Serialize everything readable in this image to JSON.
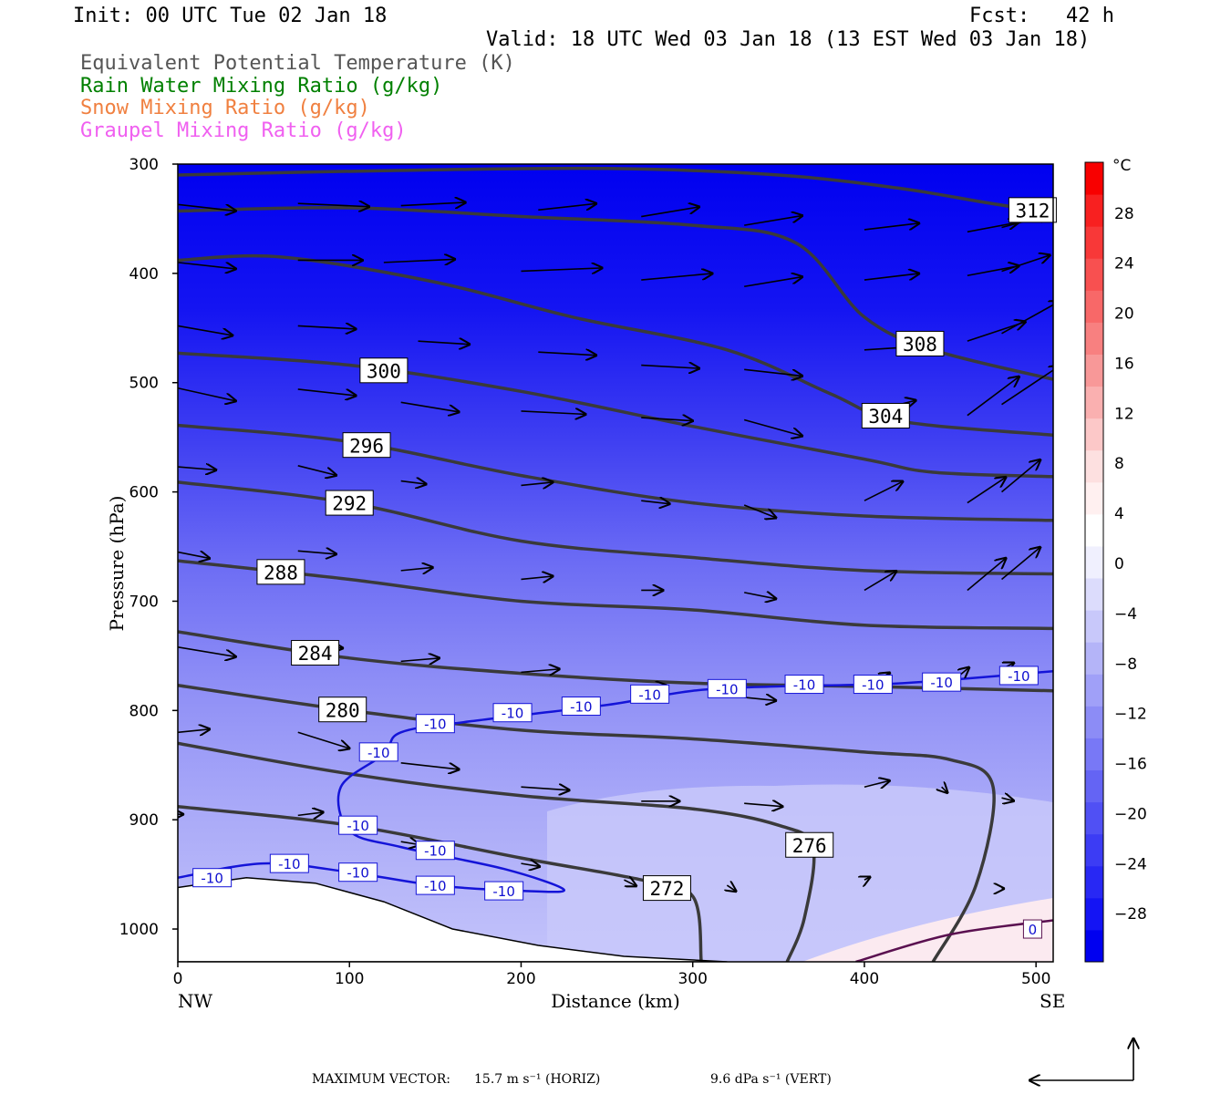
{
  "header": {
    "init": "Init: 00 UTC Tue 02 Jan 18",
    "fcst": "Fcst:   42 h",
    "valid": "Valid: 18 UTC Wed 03 Jan 18 (13 EST Wed 03 Jan 18)"
  },
  "legend": [
    {
      "label": "Equivalent Potential Temperature (K)",
      "color": "#555555"
    },
    {
      "label": "Rain Water Mixing Ratio (g/kg)",
      "color": "#008000"
    },
    {
      "label": "Snow Mixing Ratio (g/kg)",
      "color": "#f08040"
    },
    {
      "label": "Graupel Mixing Ratio (g/kg)",
      "color": "#f060f0"
    }
  ],
  "footer": {
    "max_vector_label": "MAXIMUM VECTOR:",
    "horiz": "15.7 m s⁻¹ (HORIZ)",
    "vert": "9.6 dPa s⁻¹ (VERT)"
  },
  "chart_data": {
    "type": "heatmap",
    "xlabel": "Distance (km)",
    "ylabel": "Pressure (hPa)",
    "x_left_label": "NW",
    "x_right_label": "SE",
    "xlim": [
      0,
      510
    ],
    "ylim": [
      1030,
      300
    ],
    "x_ticks": [
      0,
      100,
      200,
      300,
      400,
      500
    ],
    "y_ticks": [
      300,
      400,
      500,
      600,
      700,
      800,
      900,
      1000
    ],
    "colorbar": {
      "unit": "°C",
      "ticks": [
        28,
        24,
        20,
        16,
        12,
        8,
        4,
        0,
        -4,
        -8,
        -12,
        -16,
        -20,
        -24,
        -28
      ],
      "colors": [
        "#0000f0",
        "#1414f4",
        "#2828f4",
        "#3c3cf4",
        "#5050f4",
        "#6464f4",
        "#7878f6",
        "#8c8cf6",
        "#a0a0f8",
        "#b4b4f8",
        "#c8c8fa",
        "#dcdcfc",
        "#f0f0fe",
        "#ffffff",
        "#fff0f0",
        "#fde0e0",
        "#fcc8c8",
        "#fab0b0",
        "#f89898",
        "#f88080",
        "#f86868",
        "#f85050",
        "#f83838",
        "#f82020",
        "#f80000"
      ]
    },
    "theta_e_contours": [
      {
        "label": "312",
        "points": [
          [
            0,
            310
          ],
          [
            120,
            306
          ],
          [
            250,
            304
          ],
          [
            350,
            310
          ],
          [
            420,
            322
          ],
          [
            470,
            335
          ],
          [
            510,
            345
          ]
        ]
      },
      {
        "label": "308",
        "points": [
          [
            0,
            343
          ],
          [
            100,
            340
          ],
          [
            200,
            348
          ],
          [
            300,
            356
          ],
          [
            360,
            372
          ],
          [
            400,
            440
          ],
          [
            440,
            470
          ],
          [
            510,
            497
          ]
        ]
      },
      {
        "label": "304",
        "points": [
          [
            0,
            388
          ],
          [
            60,
            385
          ],
          [
            150,
            408
          ],
          [
            230,
            440
          ],
          [
            320,
            470
          ],
          [
            380,
            510
          ],
          [
            420,
            535
          ],
          [
            510,
            548
          ]
        ]
      },
      {
        "label": "300",
        "points": [
          [
            0,
            473
          ],
          [
            100,
            484
          ],
          [
            200,
            508
          ],
          [
            300,
            540
          ],
          [
            400,
            570
          ],
          [
            440,
            582
          ],
          [
            510,
            586
          ]
        ]
      },
      {
        "label": "296",
        "points": [
          [
            0,
            539
          ],
          [
            100,
            554
          ],
          [
            200,
            585
          ],
          [
            300,
            610
          ],
          [
            400,
            622
          ],
          [
            510,
            626
          ]
        ]
      },
      {
        "label": "292",
        "points": [
          [
            0,
            591
          ],
          [
            100,
            610
          ],
          [
            200,
            645
          ],
          [
            300,
            660
          ],
          [
            400,
            672
          ],
          [
            510,
            675
          ]
        ]
      },
      {
        "label": "288",
        "points": [
          [
            0,
            663
          ],
          [
            100,
            680
          ],
          [
            200,
            700
          ],
          [
            300,
            708
          ],
          [
            400,
            722
          ],
          [
            510,
            725
          ]
        ]
      },
      {
        "label": "284",
        "points": [
          [
            0,
            728
          ],
          [
            100,
            752
          ],
          [
            200,
            766
          ],
          [
            300,
            775
          ],
          [
            400,
            778
          ],
          [
            510,
            782
          ]
        ]
      },
      {
        "label": "280",
        "points": [
          [
            0,
            777
          ],
          [
            100,
            800
          ],
          [
            200,
            818
          ],
          [
            300,
            826
          ],
          [
            400,
            838
          ],
          [
            450,
            845
          ],
          [
            475,
            870
          ],
          [
            465,
            960
          ],
          [
            440,
            1030
          ]
        ]
      },
      {
        "label": "276",
        "points": [
          [
            0,
            830
          ],
          [
            100,
            858
          ],
          [
            200,
            878
          ],
          [
            300,
            890
          ],
          [
            350,
            905
          ],
          [
            370,
            925
          ],
          [
            365,
            990
          ],
          [
            355,
            1030
          ]
        ]
      },
      {
        "label": "272",
        "points": [
          [
            0,
            888
          ],
          [
            100,
            905
          ],
          [
            200,
            935
          ],
          [
            270,
            955
          ],
          [
            300,
            970
          ],
          [
            305,
            1030
          ]
        ]
      }
    ],
    "minus10_isotherm": {
      "label": "-10",
      "points": [
        [
          0,
          953
        ],
        [
          50,
          940
        ],
        [
          100,
          948
        ],
        [
          150,
          960
        ],
        [
          200,
          965
        ],
        [
          225,
          964
        ],
        [
          190,
          945
        ],
        [
          130,
          925
        ],
        [
          100,
          910
        ],
        [
          95,
          870
        ],
        [
          120,
          840
        ],
        [
          130,
          820
        ],
        [
          170,
          810
        ],
        [
          250,
          795
        ],
        [
          300,
          782
        ],
        [
          350,
          778
        ],
        [
          410,
          776
        ],
        [
          450,
          772
        ],
        [
          510,
          764
        ]
      ]
    },
    "zero_isotherm": {
      "label": "0",
      "points": [
        [
          395,
          1030
        ],
        [
          450,
          1005
        ],
        [
          510,
          992
        ]
      ]
    },
    "terrain_hpa": [
      [
        0,
        962
      ],
      [
        40,
        953
      ],
      [
        80,
        958
      ],
      [
        120,
        975
      ],
      [
        160,
        1000
      ],
      [
        210,
        1015
      ],
      [
        260,
        1025
      ],
      [
        320,
        1030
      ]
    ],
    "wind_vectors": [
      [
        0,
        337,
        18,
        2
      ],
      [
        70,
        336,
        22,
        1
      ],
      [
        130,
        338,
        20,
        -1
      ],
      [
        210,
        342,
        18,
        -2
      ],
      [
        270,
        348,
        18,
        -3
      ],
      [
        330,
        356,
        18,
        -3
      ],
      [
        400,
        360,
        17,
        -2
      ],
      [
        460,
        362,
        16,
        -3
      ],
      [
        480,
        358,
        15,
        -4
      ],
      [
        0,
        390,
        18,
        2
      ],
      [
        70,
        388,
        20,
        0
      ],
      [
        120,
        390,
        22,
        -1
      ],
      [
        200,
        398,
        25,
        -1
      ],
      [
        270,
        406,
        22,
        -2
      ],
      [
        330,
        412,
        18,
        -3
      ],
      [
        400,
        406,
        17,
        -2
      ],
      [
        460,
        402,
        16,
        -3
      ],
      [
        480,
        398,
        15,
        -5
      ],
      [
        0,
        448,
        17,
        3
      ],
      [
        70,
        448,
        18,
        1
      ],
      [
        140,
        462,
        16,
        1
      ],
      [
        210,
        472,
        18,
        1
      ],
      [
        270,
        484,
        18,
        1
      ],
      [
        330,
        488,
        18,
        2
      ],
      [
        400,
        470,
        16,
        -1
      ],
      [
        460,
        462,
        18,
        -6
      ],
      [
        480,
        455,
        18,
        -10
      ],
      [
        0,
        505,
        18,
        4
      ],
      [
        70,
        506,
        18,
        2
      ],
      [
        130,
        518,
        18,
        3
      ],
      [
        200,
        526,
        20,
        1
      ],
      [
        270,
        532,
        16,
        1
      ],
      [
        330,
        534,
        18,
        5
      ],
      [
        400,
        528,
        16,
        -4
      ],
      [
        460,
        530,
        16,
        -12
      ],
      [
        480,
        520,
        18,
        -12
      ],
      [
        0,
        577,
        12,
        1
      ],
      [
        70,
        576,
        12,
        3
      ],
      [
        130,
        590,
        8,
        1
      ],
      [
        200,
        594,
        10,
        -1
      ],
      [
        270,
        608,
        9,
        1
      ],
      [
        330,
        612,
        10,
        4
      ],
      [
        400,
        608,
        12,
        -6
      ],
      [
        460,
        610,
        12,
        -8
      ],
      [
        480,
        600,
        12,
        -10
      ],
      [
        0,
        655,
        10,
        2
      ],
      [
        70,
        654,
        12,
        1
      ],
      [
        130,
        672,
        10,
        -1
      ],
      [
        200,
        680,
        10,
        -1
      ],
      [
        270,
        690,
        7,
        0
      ],
      [
        330,
        692,
        10,
        2
      ],
      [
        400,
        690,
        10,
        -6
      ],
      [
        460,
        690,
        12,
        -10
      ],
      [
        480,
        680,
        12,
        -10
      ],
      [
        0,
        742,
        18,
        3
      ],
      [
        70,
        740,
        14,
        1
      ],
      [
        130,
        755,
        12,
        -1
      ],
      [
        200,
        765,
        12,
        -1
      ],
      [
        270,
        780,
        8,
        -1
      ],
      [
        330,
        788,
        10,
        1
      ],
      [
        400,
        780,
        8,
        -5
      ],
      [
        450,
        775,
        6,
        -5
      ],
      [
        480,
        762,
        4,
        -2
      ],
      [
        0,
        820,
        10,
        -1
      ],
      [
        70,
        820,
        16,
        5
      ],
      [
        130,
        848,
        18,
        2
      ],
      [
        200,
        870,
        15,
        1
      ],
      [
        270,
        883,
        12,
        0
      ],
      [
        330,
        885,
        12,
        1
      ],
      [
        400,
        870,
        8,
        -2
      ],
      [
        445,
        870,
        2,
        2
      ],
      [
        480,
        880,
        4,
        1
      ],
      [
        0,
        895,
        2,
        0
      ],
      [
        70,
        896,
        8,
        -1
      ],
      [
        130,
        920,
        6,
        1
      ],
      [
        200,
        940,
        6,
        1
      ],
      [
        260,
        955,
        4,
        2
      ],
      [
        320,
        960,
        3,
        2
      ],
      [
        400,
        955,
        2,
        -1
      ],
      [
        480,
        963,
        1,
        0
      ]
    ]
  }
}
